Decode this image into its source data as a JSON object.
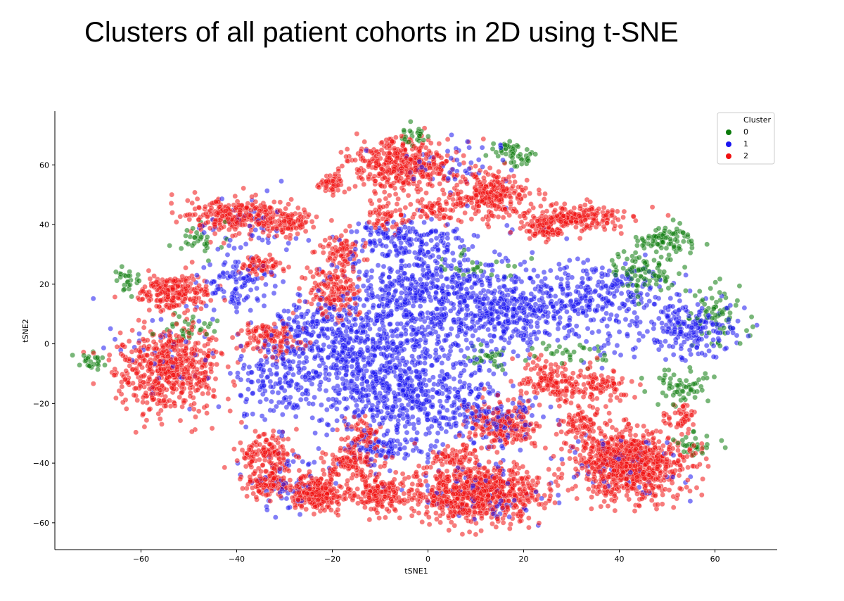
{
  "page": {
    "title": "Clusters of all patient cohorts in 2D using t-SNE"
  },
  "chart_data": {
    "type": "scatter",
    "title": "Clusters of all patient cohorts in 2D using t-SNE",
    "xlabel": "tSNE1",
    "ylabel": "tSNE2",
    "xlim": [
      -78,
      73
    ],
    "ylim": [
      -69,
      78
    ],
    "xticks": [
      "−60",
      "−40",
      "−20",
      "0",
      "20",
      "40",
      "60"
    ],
    "xtick_values": [
      -60,
      -40,
      -20,
      0,
      20,
      40,
      60
    ],
    "yticks": [
      "−60",
      "−40",
      "−20",
      "0",
      "20",
      "40",
      "60"
    ],
    "ytick_values": [
      -60,
      -40,
      -20,
      0,
      20,
      40,
      60
    ],
    "grid": false,
    "spines": "left-bottom",
    "marker_alpha": 0.55,
    "legend": {
      "title": "Cluster",
      "placement": "top-right"
    },
    "series": [
      {
        "name": "0",
        "color": "#0a7a0a",
        "blobs": [
          [
            50,
            35,
            4,
            3,
            80
          ],
          [
            45,
            25,
            5,
            6,
            90
          ],
          [
            60,
            10,
            4,
            6,
            70
          ],
          [
            54,
            -14,
            4,
            4,
            60
          ],
          [
            -70,
            -6,
            2,
            2,
            25
          ],
          [
            -50,
            5,
            4,
            2,
            30
          ],
          [
            12,
            -5,
            3,
            3,
            25
          ],
          [
            16,
            65,
            3,
            2,
            30
          ],
          [
            20,
            62,
            2,
            2,
            20
          ],
          [
            -3,
            70,
            2,
            2,
            25
          ],
          [
            55,
            -34,
            3,
            3,
            30
          ],
          [
            30,
            -3,
            5,
            3,
            30
          ],
          [
            10,
            25,
            5,
            3,
            25
          ],
          [
            -48,
            35,
            3,
            4,
            30
          ],
          [
            -63,
            22,
            2,
            3,
            25
          ]
        ]
      },
      {
        "name": "1",
        "color": "#1a14f0",
        "blobs": [
          [
            0,
            15,
            13,
            13,
            700
          ],
          [
            18,
            10,
            7,
            8,
            250
          ],
          [
            -15,
            -5,
            10,
            12,
            450
          ],
          [
            -2,
            -18,
            11,
            10,
            450
          ],
          [
            35,
            15,
            9,
            9,
            300
          ],
          [
            55,
            5,
            7,
            7,
            200
          ],
          [
            -32,
            -12,
            6,
            8,
            150
          ],
          [
            -5,
            35,
            8,
            4,
            150
          ],
          [
            -40,
            20,
            5,
            6,
            100
          ],
          [
            -10,
            -35,
            7,
            4,
            100
          ],
          [
            15,
            -25,
            6,
            6,
            100
          ],
          [
            -25,
            5,
            6,
            8,
            120
          ],
          [
            -30,
            -45,
            6,
            8,
            60
          ],
          [
            10,
            -50,
            10,
            6,
            80
          ],
          [
            -55,
            0,
            8,
            10,
            40
          ],
          [
            -38,
            40,
            8,
            8,
            50
          ],
          [
            5,
            60,
            10,
            6,
            50
          ],
          [
            40,
            -40,
            10,
            8,
            60
          ]
        ]
      },
      {
        "name": "2",
        "color": "#f01010",
        "blobs": [
          [
            -54,
            -9,
            7,
            9,
            550
          ],
          [
            -53,
            17,
            5,
            4,
            220
          ],
          [
            -40,
            43,
            7,
            4,
            250
          ],
          [
            -29,
            41,
            3,
            3,
            100
          ],
          [
            -35,
            26,
            3,
            2,
            70
          ],
          [
            -33,
            2,
            4,
            4,
            120
          ],
          [
            -20,
            18,
            4,
            6,
            150
          ],
          [
            -18,
            32,
            3,
            3,
            70
          ],
          [
            -20,
            54,
            2,
            3,
            50
          ],
          [
            -9,
            43,
            3,
            3,
            60
          ],
          [
            -5,
            60,
            7,
            6,
            400
          ],
          [
            2,
            45,
            3,
            3,
            60
          ],
          [
            13,
            50,
            5,
            5,
            250
          ],
          [
            30,
            42,
            7,
            3,
            220
          ],
          [
            24,
            38,
            3,
            2,
            60
          ],
          [
            25,
            -12,
            4,
            4,
            120
          ],
          [
            34,
            -14,
            5,
            4,
            120
          ],
          [
            10,
            -50,
            9,
            6,
            750
          ],
          [
            -23,
            -50,
            4,
            4,
            250
          ],
          [
            -10,
            -50,
            4,
            4,
            150
          ],
          [
            -34,
            -37,
            4,
            5,
            150
          ],
          [
            -34,
            -47,
            3,
            3,
            100
          ],
          [
            -16,
            -40,
            4,
            4,
            120
          ],
          [
            42,
            -40,
            8,
            8,
            800
          ],
          [
            16,
            -27,
            5,
            5,
            200
          ],
          [
            32,
            -27,
            3,
            3,
            70
          ],
          [
            53,
            -25,
            2,
            3,
            40
          ],
          [
            -14,
            -30,
            3,
            3,
            60
          ],
          [
            5,
            -38,
            3,
            3,
            60
          ]
        ]
      }
    ]
  }
}
